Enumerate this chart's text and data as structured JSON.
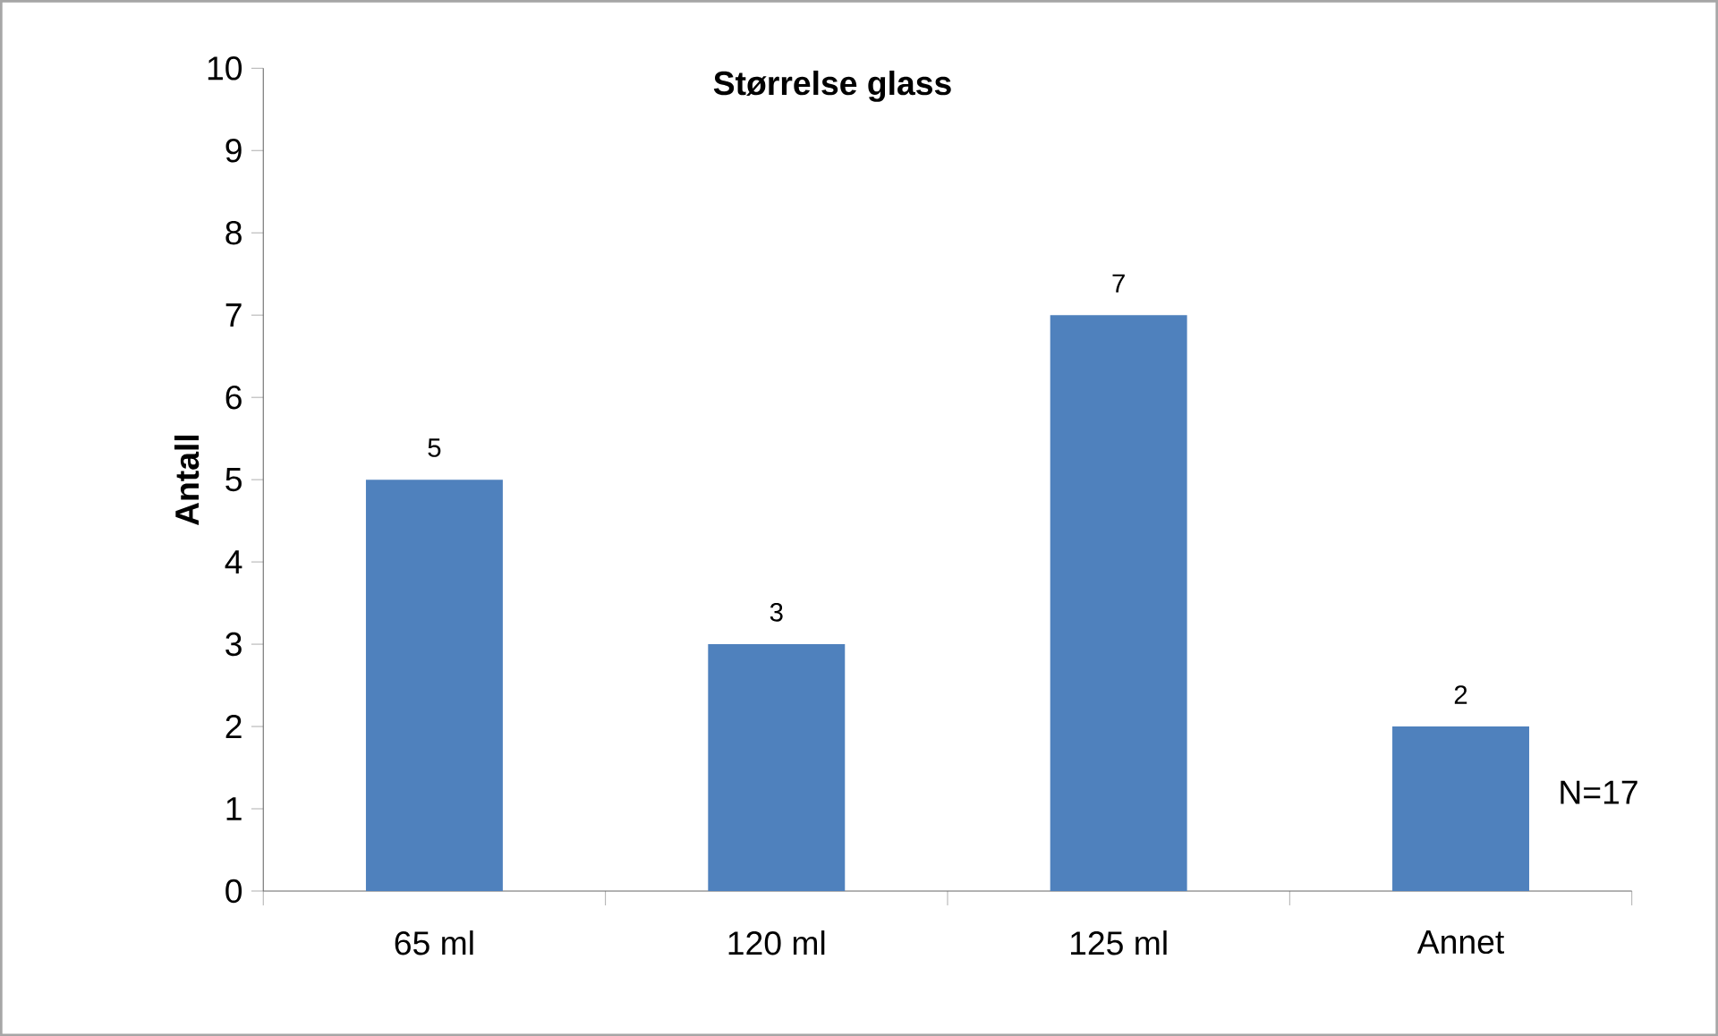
{
  "chart_data": {
    "type": "bar",
    "title": "Størrelse glass",
    "ylabel": "Antall",
    "categories": [
      "65 ml",
      "120 ml",
      "125 ml",
      "Annet"
    ],
    "values": [
      5,
      3,
      7,
      2
    ],
    "color": "#4f81bd",
    "ylim": [
      0,
      10
    ],
    "yticks": [
      0,
      1,
      2,
      3,
      4,
      5,
      6,
      7,
      8,
      9,
      10
    ],
    "data_labels": true,
    "annotations": [
      "N=17"
    ]
  }
}
